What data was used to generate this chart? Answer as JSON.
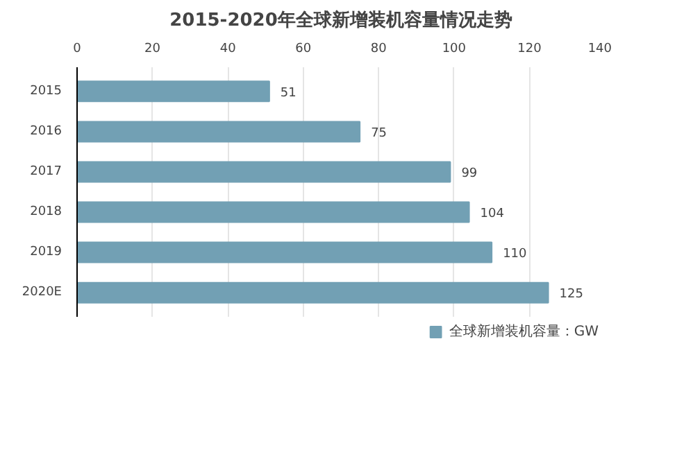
{
  "chart_data": {
    "type": "bar",
    "orientation": "horizontal",
    "title": "2015-2020年全球新增装机容量情况走势",
    "categories": [
      "2015",
      "2016",
      "2017",
      "2018",
      "2019",
      "2020E"
    ],
    "series": [
      {
        "name": "全球新增装机容量：GW",
        "color": "#72a0b4",
        "values": [
          51,
          75,
          99,
          104,
          110,
          125
        ]
      }
    ],
    "xlim": [
      0,
      140
    ],
    "xticks": [
      0,
      20,
      40,
      60,
      80,
      100,
      120,
      140
    ],
    "grid": "x",
    "legend": "bottom",
    "data_labels": true
  }
}
